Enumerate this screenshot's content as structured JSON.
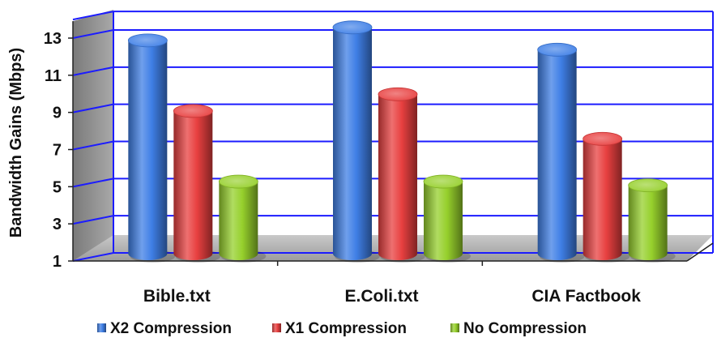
{
  "chart_data": {
    "type": "bar",
    "title": "",
    "xlabel": "",
    "ylabel": "Bandwidth Gains (Mbps)",
    "ylim": [
      1,
      14
    ],
    "yticks": [
      1,
      3,
      5,
      7,
      9,
      11,
      13
    ],
    "categories": [
      "Bible.txt",
      "E.Coli.txt",
      "CIA Factbook"
    ],
    "series": [
      {
        "name": "X2 Compression",
        "values": [
          12.7,
          13.4,
          12.2
        ],
        "color": "#3f7fe6"
      },
      {
        "name": "X1 Compression",
        "values": [
          8.9,
          9.8,
          7.4
        ],
        "color": "#e84040"
      },
      {
        "name": "No Compression",
        "values": [
          5.1,
          5.1,
          4.9
        ],
        "color": "#96d02c"
      }
    ],
    "grid": true,
    "legend": "bottom",
    "style": "3d-cylinder"
  }
}
